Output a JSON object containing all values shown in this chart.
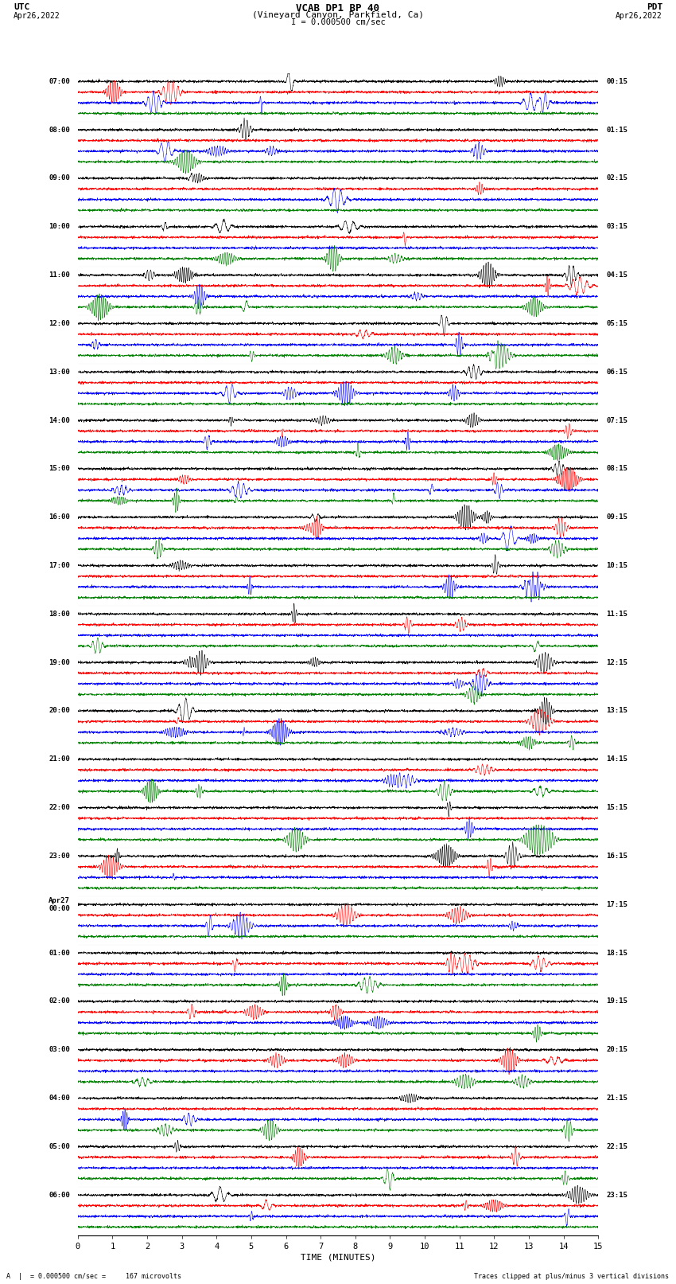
{
  "title_line1": "VCAB DP1 BP 40",
  "title_line2": "(Vineyard Canyon, Parkfield, Ca)",
  "scale_label": "I = 0.000500 cm/sec",
  "utc_label": "UTC",
  "pdt_label": "PDT",
  "date_left": "Apr26,2022",
  "date_right": "Apr26,2022",
  "xlabel": "TIME (MINUTES)",
  "bottom_left": "A  |  = 0.000500 cm/sec =     167 microvolts",
  "bottom_right": "Traces clipped at plus/minus 3 vertical divisions",
  "colors": [
    "black",
    "red",
    "blue",
    "green"
  ],
  "utc_times": [
    "07:00",
    "08:00",
    "09:00",
    "10:00",
    "11:00",
    "12:00",
    "13:00",
    "14:00",
    "15:00",
    "16:00",
    "17:00",
    "18:00",
    "19:00",
    "20:00",
    "21:00",
    "22:00",
    "23:00",
    "Apr27\n00:00",
    "01:00",
    "02:00",
    "03:00",
    "04:00",
    "05:00",
    "06:00"
  ],
  "pdt_times": [
    "00:15",
    "01:15",
    "02:15",
    "03:15",
    "04:15",
    "05:15",
    "06:15",
    "07:15",
    "08:15",
    "09:15",
    "10:15",
    "11:15",
    "12:15",
    "13:15",
    "14:15",
    "15:15",
    "16:15",
    "17:15",
    "18:15",
    "19:15",
    "20:15",
    "21:15",
    "22:15",
    "23:15"
  ],
  "n_time_slots": 24,
  "n_cols": 4,
  "x_min": 0,
  "x_max": 15,
  "x_ticks": [
    0,
    1,
    2,
    3,
    4,
    5,
    6,
    7,
    8,
    9,
    10,
    11,
    12,
    13,
    14,
    15
  ],
  "bg_color": "white",
  "noise_amplitude": 0.012,
  "event_amp_scale": 0.28,
  "seed": 42
}
